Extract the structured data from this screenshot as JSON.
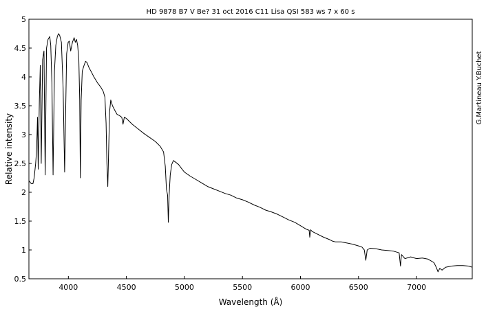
{
  "chart_data": {
    "type": "line",
    "title": "HD 9878   B7 V   Be?   31 oct 2016   C11 Lisa   QSI 583 ws   7 x 60 s",
    "xlabel": "Wavelength (Å)",
    "ylabel": "Relative intensity",
    "annotation": "G.Martineau  Y.Buchet",
    "xlim": [
      3660,
      7480
    ],
    "ylim": [
      0.5,
      5
    ],
    "grid": false,
    "legend": "none",
    "x_ticks": [
      4000,
      4500,
      5000,
      5500,
      6000,
      6500,
      7000
    ],
    "y_ticks": [
      0.5,
      1,
      1.5,
      2,
      2.5,
      3,
      3.5,
      4,
      4.5,
      5
    ],
    "x_tick_labels": [
      "4000",
      "4500",
      "5000",
      "5500",
      "6000",
      "6500",
      "7000"
    ],
    "y_tick_labels": [
      "0.5",
      "1",
      "1.5",
      "2",
      "2.5",
      "3",
      "3.5",
      "4",
      "4.5",
      "5"
    ],
    "series": [
      {
        "color": "#000000",
        "points": [
          [
            3660,
            2.2
          ],
          [
            3680,
            2.15
          ],
          [
            3695,
            2.15
          ],
          [
            3705,
            2.25
          ],
          [
            3718,
            2.5
          ],
          [
            3725,
            2.7
          ],
          [
            3730,
            3.0
          ],
          [
            3734,
            3.3
          ],
          [
            3740,
            2.4
          ],
          [
            3750,
            3.6
          ],
          [
            3758,
            4.2
          ],
          [
            3766,
            2.5
          ],
          [
            3778,
            4.3
          ],
          [
            3790,
            4.45
          ],
          [
            3800,
            2.3
          ],
          [
            3812,
            4.5
          ],
          [
            3825,
            4.65
          ],
          [
            3840,
            4.7
          ],
          [
            3848,
            4.55
          ],
          [
            3858,
            3.9
          ],
          [
            3868,
            2.3
          ],
          [
            3880,
            4.1
          ],
          [
            3892,
            4.55
          ],
          [
            3905,
            4.7
          ],
          [
            3915,
            4.75
          ],
          [
            3925,
            4.72
          ],
          [
            3940,
            4.6
          ],
          [
            3955,
            3.8
          ],
          [
            3968,
            2.35
          ],
          [
            3985,
            4.4
          ],
          [
            3998,
            4.6
          ],
          [
            4008,
            4.62
          ],
          [
            4020,
            4.45
          ],
          [
            4035,
            4.6
          ],
          [
            4050,
            4.68
          ],
          [
            4060,
            4.6
          ],
          [
            4070,
            4.65
          ],
          [
            4080,
            4.55
          ],
          [
            4090,
            4.3
          ],
          [
            4098,
            3.6
          ],
          [
            4103,
            2.25
          ],
          [
            4110,
            3.6
          ],
          [
            4120,
            4.1
          ],
          [
            4135,
            4.2
          ],
          [
            4148,
            4.27
          ],
          [
            4160,
            4.25
          ],
          [
            4180,
            4.15
          ],
          [
            4200,
            4.08
          ],
          [
            4220,
            4.0
          ],
          [
            4250,
            3.9
          ],
          [
            4280,
            3.82
          ],
          [
            4300,
            3.75
          ],
          [
            4315,
            3.65
          ],
          [
            4325,
            3.2
          ],
          [
            4332,
            2.5
          ],
          [
            4340,
            2.1
          ],
          [
            4348,
            2.8
          ],
          [
            4355,
            3.4
          ],
          [
            4365,
            3.6
          ],
          [
            4380,
            3.5
          ],
          [
            4400,
            3.42
          ],
          [
            4420,
            3.35
          ],
          [
            4440,
            3.33
          ],
          [
            4460,
            3.3
          ],
          [
            4471,
            3.18
          ],
          [
            4482,
            3.3
          ],
          [
            4500,
            3.28
          ],
          [
            4550,
            3.18
          ],
          [
            4600,
            3.1
          ],
          [
            4650,
            3.02
          ],
          [
            4700,
            2.95
          ],
          [
            4750,
            2.88
          ],
          [
            4790,
            2.8
          ],
          [
            4820,
            2.7
          ],
          [
            4835,
            2.45
          ],
          [
            4845,
            2.05
          ],
          [
            4855,
            1.95
          ],
          [
            4861,
            1.48
          ],
          [
            4868,
            1.95
          ],
          [
            4878,
            2.3
          ],
          [
            4890,
            2.48
          ],
          [
            4905,
            2.55
          ],
          [
            4925,
            2.52
          ],
          [
            4950,
            2.48
          ],
          [
            4980,
            2.4
          ],
          [
            5000,
            2.35
          ],
          [
            5050,
            2.28
          ],
          [
            5100,
            2.22
          ],
          [
            5150,
            2.16
          ],
          [
            5200,
            2.1
          ],
          [
            5250,
            2.06
          ],
          [
            5300,
            2.02
          ],
          [
            5350,
            1.98
          ],
          [
            5400,
            1.95
          ],
          [
            5450,
            1.9
          ],
          [
            5500,
            1.87
          ],
          [
            5550,
            1.83
          ],
          [
            5600,
            1.78
          ],
          [
            5650,
            1.74
          ],
          [
            5700,
            1.69
          ],
          [
            5750,
            1.66
          ],
          [
            5800,
            1.62
          ],
          [
            5850,
            1.57
          ],
          [
            5900,
            1.52
          ],
          [
            5950,
            1.48
          ],
          [
            6000,
            1.42
          ],
          [
            6050,
            1.36
          ],
          [
            6075,
            1.34
          ],
          [
            6080,
            1.22
          ],
          [
            6088,
            1.35
          ],
          [
            6100,
            1.32
          ],
          [
            6150,
            1.27
          ],
          [
            6200,
            1.22
          ],
          [
            6250,
            1.18
          ],
          [
            6280,
            1.15
          ],
          [
            6300,
            1.14
          ],
          [
            6350,
            1.14
          ],
          [
            6400,
            1.12
          ],
          [
            6450,
            1.1
          ],
          [
            6500,
            1.07
          ],
          [
            6530,
            1.05
          ],
          [
            6550,
            1.0
          ],
          [
            6563,
            0.82
          ],
          [
            6575,
            1.0
          ],
          [
            6600,
            1.03
          ],
          [
            6650,
            1.02
          ],
          [
            6700,
            1.0
          ],
          [
            6750,
            0.99
          ],
          [
            6800,
            0.98
          ],
          [
            6850,
            0.95
          ],
          [
            6862,
            0.72
          ],
          [
            6870,
            0.92
          ],
          [
            6900,
            0.85
          ],
          [
            6950,
            0.88
          ],
          [
            7000,
            0.85
          ],
          [
            7050,
            0.86
          ],
          [
            7100,
            0.84
          ],
          [
            7150,
            0.78
          ],
          [
            7170,
            0.7
          ],
          [
            7185,
            0.62
          ],
          [
            7200,
            0.68
          ],
          [
            7220,
            0.65
          ],
          [
            7250,
            0.7
          ],
          [
            7300,
            0.72
          ],
          [
            7350,
            0.73
          ],
          [
            7400,
            0.73
          ],
          [
            7450,
            0.72
          ],
          [
            7480,
            0.7
          ]
        ]
      }
    ]
  }
}
